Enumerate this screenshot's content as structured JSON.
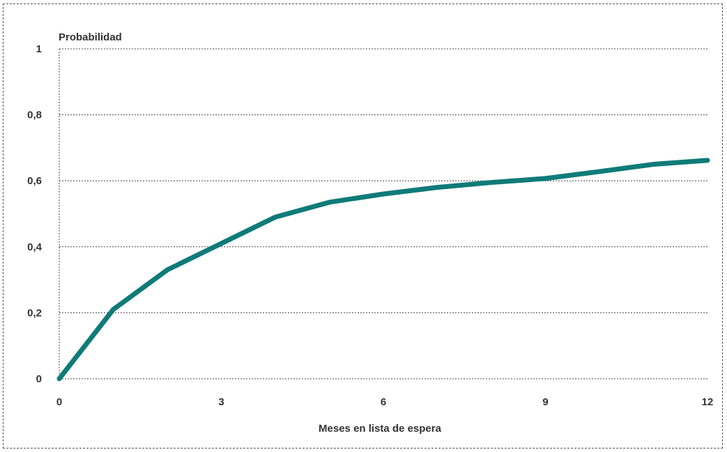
{
  "chart_data": {
    "type": "line",
    "title": "",
    "xlabel": "Meses en lista de espera",
    "ylabel": "Probabilidad",
    "xlim": [
      0,
      12
    ],
    "ylim": [
      0,
      1
    ],
    "x_ticks": [
      0,
      3,
      6,
      9,
      12
    ],
    "x_tick_labels": [
      "0",
      "3",
      "6",
      "9",
      "12"
    ],
    "y_ticks": [
      0,
      0.2,
      0.4,
      0.6,
      0.8,
      1
    ],
    "y_tick_labels": [
      "0",
      "0,2",
      "0,4",
      "0,6",
      "0,8",
      "1"
    ],
    "grid": true,
    "legend": false,
    "series": [
      {
        "color": "#0f7b78",
        "x": [
          0,
          1,
          2,
          3,
          4,
          5,
          6,
          7,
          8,
          9,
          10,
          11,
          12
        ],
        "y": [
          0,
          0.21,
          0.33,
          0.41,
          0.49,
          0.535,
          0.56,
          0.58,
          0.595,
          0.607,
          0.628,
          0.65,
          0.662
        ]
      }
    ]
  }
}
